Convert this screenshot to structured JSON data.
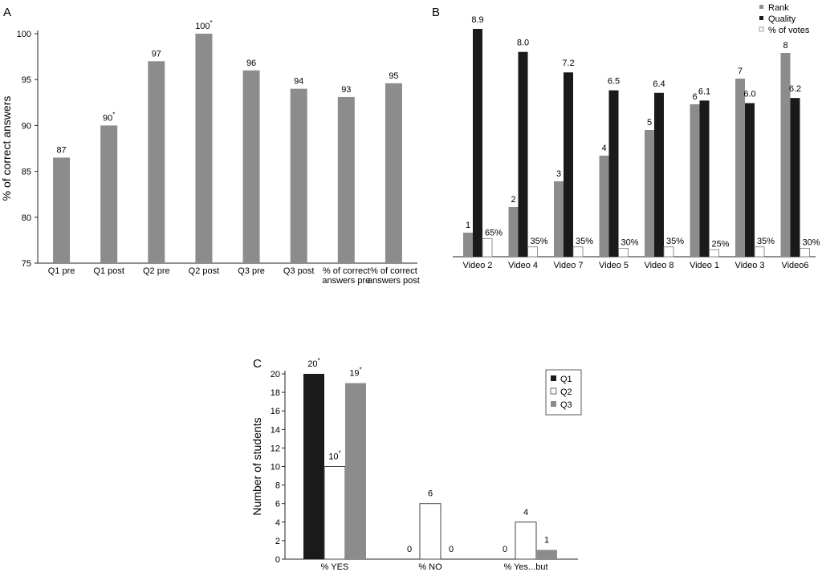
{
  "chart_data": [
    {
      "panel": "A",
      "type": "bar",
      "categories": [
        "Q1 pre",
        "Q1 post",
        "Q2 pre",
        "Q2 post",
        "Q3 pre",
        "Q3 post",
        "% of correct answers pre",
        "% of correct answers post"
      ],
      "category_lines": [
        [
          "Q1 pre"
        ],
        [
          "Q1 post"
        ],
        [
          "Q2 pre"
        ],
        [
          "Q2 post"
        ],
        [
          "Q3 pre"
        ],
        [
          "Q3 post"
        ],
        [
          "% of correct",
          "answers pre"
        ],
        [
          "% of correct",
          "answers post"
        ]
      ],
      "values": [
        86.5,
        90,
        97,
        100,
        96,
        94,
        93.1,
        94.6
      ],
      "data_labels": [
        "87",
        "90",
        "97",
        "100",
        "96",
        "94",
        "93",
        "95"
      ],
      "label_marks": [
        "",
        "*",
        "",
        "*",
        "",
        "",
        "",
        ""
      ],
      "ylabel": "% of correct answers",
      "ylim": [
        75,
        100
      ],
      "yticks": [
        75,
        80,
        85,
        90,
        95,
        100
      ],
      "color": "#8c8c8c"
    },
    {
      "panel": "B",
      "type": "bar",
      "categories": [
        "Video 2",
        "Video 4",
        "Video 7",
        "Video 5",
        "Video 8",
        "Video 1",
        "Video 3",
        "Video6"
      ],
      "series": [
        {
          "name": "Rank",
          "values": [
            1,
            2,
            3,
            4,
            5,
            6,
            7,
            8
          ],
          "labels": [
            "1",
            "2",
            "3",
            "4",
            "5",
            "6",
            "7",
            "8"
          ],
          "color": "#8c8c8c"
        },
        {
          "name": "Quality",
          "values": [
            8.9,
            8.0,
            7.2,
            6.5,
            6.4,
            6.1,
            6.0,
            6.2
          ],
          "labels": [
            "8.9",
            "8.0",
            "7.2",
            "6.5",
            "6.4",
            "6.1",
            "6.0",
            "6.2"
          ],
          "color": "#1a1a1a"
        },
        {
          "name": "% of votes",
          "values": [
            65,
            35,
            35,
            30,
            35,
            25,
            35,
            30
          ],
          "labels": [
            "65%",
            "35%",
            "35%",
            "30%",
            "35%",
            "25%",
            "35%",
            "30%"
          ],
          "color": "#ffffff"
        }
      ],
      "legend": "top-right"
    },
    {
      "panel": "C",
      "type": "bar",
      "categories": [
        "% YES",
        "% NO",
        "% Yes...but"
      ],
      "series": [
        {
          "name": "Q1",
          "values": [
            20,
            0,
            0
          ],
          "labels": [
            "20",
            "0",
            "0"
          ],
          "marks": [
            "*",
            "",
            ""
          ],
          "color": "#1a1a1a"
        },
        {
          "name": "Q2",
          "values": [
            10,
            6,
            4
          ],
          "labels": [
            "10",
            "6",
            "4"
          ],
          "marks": [
            "*",
            "",
            ""
          ],
          "color": "#ffffff"
        },
        {
          "name": "Q3",
          "values": [
            19,
            0,
            1
          ],
          "labels": [
            "19",
            "0",
            "1"
          ],
          "marks": [
            "*",
            "",
            ""
          ],
          "color": "#8c8c8c"
        }
      ],
      "ylabel": "Number of students",
      "ylim": [
        0,
        20
      ],
      "yticks": [
        0,
        2,
        4,
        6,
        8,
        10,
        12,
        14,
        16,
        18,
        20
      ],
      "legend": "right"
    }
  ]
}
